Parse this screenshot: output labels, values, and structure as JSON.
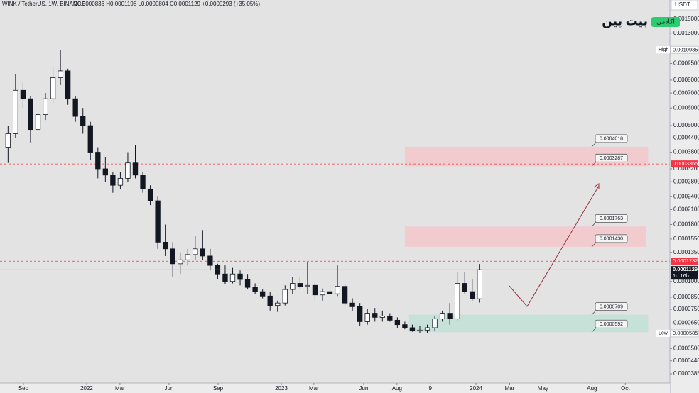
{
  "header": {
    "symbol": "WINK / TetherUS, 1W, BINANCE",
    "ohlc": "O0.0000836 H0.0001198 L0.0000804 C0.0001129 +0.0000293 (+35.05%)"
  },
  "logo": {
    "name": "بیت پین",
    "tag": "آکادمی"
  },
  "chart_data": {
    "type": "candlestick",
    "currency": "USDT",
    "log_scale": true,
    "ylim": [
      3.5e-05,
      0.00183
    ],
    "yticks": [
      {
        "value": 0.0015,
        "label": "0.0015000"
      },
      {
        "value": 0.0013,
        "label": "0.0013000"
      },
      {
        "value": 0.00095,
        "label": "0.0009500"
      },
      {
        "value": 0.0008,
        "label": "0.0008000"
      },
      {
        "value": 0.0007,
        "label": "0.0007000"
      },
      {
        "value": 0.0006,
        "label": "0.0006000"
      },
      {
        "value": 0.0005,
        "label": "0.0005000"
      },
      {
        "value": 0.00044,
        "label": "0.0004400"
      },
      {
        "value": 0.00038,
        "label": "0.0003800"
      },
      {
        "value": 0.00032,
        "label": "0.0003200"
      },
      {
        "value": 0.00028,
        "label": "0.0002800"
      },
      {
        "value": 0.00024,
        "label": "0.0002400"
      },
      {
        "value": 0.00021,
        "label": "0.0002100"
      },
      {
        "value": 0.00018,
        "label": "0.0001800"
      },
      {
        "value": 0.000155,
        "label": "0.0001550"
      },
      {
        "value": 0.000135,
        "label": "0.0001350"
      },
      {
        "value": 0.0001,
        "label": "0.0001000"
      },
      {
        "value": 8.5e-05,
        "label": "0.0000850"
      },
      {
        "value": 7.5e-05,
        "label": "0.0000750"
      },
      {
        "value": 6.5e-05,
        "label": "0.0000650"
      },
      {
        "value": 5e-05,
        "label": "0.0000500"
      },
      {
        "value": 4.4e-05,
        "label": "0.0000440"
      },
      {
        "value": 3.85e-05,
        "label": "0.0000385"
      }
    ],
    "xlim": [
      -23.15,
      155.8
    ],
    "xticks": [
      {
        "value": -16.9,
        "label": "Sep"
      },
      {
        "value": 0,
        "label": "2022"
      },
      {
        "value": 8.9,
        "label": "Mar"
      },
      {
        "value": 22,
        "label": "Jun"
      },
      {
        "value": 35.1,
        "label": "Sep"
      },
      {
        "value": 52,
        "label": "2023"
      },
      {
        "value": 60.7,
        "label": "Mar"
      },
      {
        "value": 74,
        "label": "Jun"
      },
      {
        "value": 82.9,
        "label": "Aug"
      },
      {
        "value": 91.8,
        "label": "9"
      },
      {
        "value": 104,
        "label": "2024"
      },
      {
        "value": 113,
        "label": "Mar"
      },
      {
        "value": 121.9,
        "label": "May"
      },
      {
        "value": 135,
        "label": "Aug"
      },
      {
        "value": 143.9,
        "label": "Oct"
      }
    ],
    "up_color": "#ffffff",
    "down_color": "#131722",
    "x": [
      -21,
      -19,
      -17,
      -15,
      -13,
      -11,
      -9,
      -7,
      -5,
      -3,
      -1,
      1,
      3,
      5,
      7,
      9,
      11,
      13,
      15,
      17,
      19,
      21,
      23,
      25,
      27,
      29,
      31,
      33,
      35,
      37,
      39,
      41,
      43,
      45,
      47,
      49,
      51,
      53,
      55,
      57,
      59,
      61,
      63,
      65,
      67,
      69,
      71,
      73,
      75,
      77,
      79,
      81,
      83,
      85,
      87,
      89,
      91,
      93,
      95,
      97,
      99,
      101,
      103,
      105
    ],
    "open": [
      0.0004,
      0.00046,
      0.00072,
      0.00066,
      0.00048,
      0.00056,
      0.00066,
      0.00082,
      0.00088,
      0.00066,
      0.00055,
      0.0005,
      0.00038,
      0.00032,
      0.0003,
      0.00027,
      0.00029,
      0.00034,
      0.0003,
      0.00026,
      0.00023,
      0.00015,
      0.00014,
      0.00012,
      0.000125,
      0.000132,
      0.00014,
      0.00013,
      0.000118,
      0.000108,
      0.0001,
      0.000108,
      0.000102,
      9.4e-05,
      9e-05,
      8.6e-05,
      7.8e-05,
      8e-05,
      9.2e-05,
      9.8e-05,
      9.5e-05,
      9.6e-05,
      8.7e-05,
      9e-05,
      8.8e-05,
      9.5e-05,
      8e-05,
      7.7e-05,
      6.6e-05,
      7.2e-05,
      6.9e-05,
      7e-05,
      6.7e-05,
      6.4e-05,
      6.2e-05,
      6e-05,
      6.05e-05,
      6.2e-05,
      6.8e-05,
      7.2e-05,
      6.8e-05,
      9.8e-05,
      9e-05,
      8.36e-05
    ],
    "high": [
      0.0005,
      0.00085,
      0.00078,
      0.00068,
      0.0006,
      0.0007,
      0.00092,
      0.0010935,
      0.0009,
      0.00068,
      0.0006,
      0.00052,
      0.0004,
      0.00036,
      0.00031,
      0.00031,
      0.00038,
      0.00041,
      0.00031,
      0.00027,
      0.00024,
      0.00018,
      0.00015,
      0.000135,
      0.00014,
      0.00016,
      0.00017,
      0.00014,
      0.00012,
      0.000118,
      0.000115,
      0.000112,
      0.000108,
      9.8e-05,
      9.2e-05,
      9e-05,
      8.2e-05,
      9.6e-05,
      0.000105,
      0.000104,
      0.000122,
      0.0001,
      9.3e-05,
      9.6e-05,
      0.000118,
      9.7e-05,
      8.4e-05,
      8e-05,
      7.5e-05,
      7.6e-05,
      7.4e-05,
      7.2e-05,
      6.9e-05,
      6.6e-05,
      6.4e-05,
      6.3e-05,
      6.4e-05,
      7e-05,
      7.4e-05,
      8e-05,
      0.00011,
      0.00011,
      0.000102,
      0.0001198
    ],
    "low": [
      0.00034,
      0.00044,
      0.0006,
      0.00042,
      0.00044,
      0.00053,
      0.00063,
      0.00076,
      0.00062,
      0.00052,
      0.00046,
      0.00035,
      0.00029,
      0.00028,
      0.00025,
      0.00026,
      0.00028,
      0.00029,
      0.00025,
      0.00022,
      0.00014,
      0.00013,
      0.000105,
      0.000108,
      0.000118,
      0.000125,
      0.000125,
      0.000112,
      0.000102,
      9.7e-05,
      9.8e-05,
      9.6e-05,
      9.2e-05,
      8.8e-05,
      8.4e-05,
      7.4e-05,
      7.3e-05,
      7.8e-05,
      8.8e-05,
      9.2e-05,
      8.8e-05,
      8.2e-05,
      8.2e-05,
      8.5e-05,
      8.6e-05,
      7.8e-05,
      7.4e-05,
      6.3e-05,
      6.4e-05,
      6.6e-05,
      6.6e-05,
      6.6e-05,
      6.2e-05,
      6.1e-05,
      5.95e-05,
      5.88e-05,
      5.85e-05,
      6e-05,
      6.6e-05,
      6.4e-05,
      6.7e-05,
      8.8e-05,
      8.2e-05,
      8.04e-05
    ],
    "close": [
      0.00046,
      0.00072,
      0.00066,
      0.00048,
      0.00056,
      0.00066,
      0.00082,
      0.00088,
      0.00066,
      0.00055,
      0.0005,
      0.00038,
      0.00032,
      0.0003,
      0.00027,
      0.00029,
      0.00034,
      0.0003,
      0.00026,
      0.00023,
      0.00015,
      0.00014,
      0.00012,
      0.000125,
      0.000132,
      0.00014,
      0.00013,
      0.000118,
      0.000108,
      0.0001,
      0.000108,
      0.000102,
      9.4e-05,
      9e-05,
      8.6e-05,
      7.8e-05,
      8e-05,
      9.2e-05,
      9.8e-05,
      9.5e-05,
      9.6e-05,
      8.7e-05,
      9e-05,
      8.8e-05,
      9.5e-05,
      8e-05,
      7.7e-05,
      6.6e-05,
      7.2e-05,
      6.9e-05,
      7e-05,
      6.7e-05,
      6.4e-05,
      6.2e-05,
      6e-05,
      6.05e-05,
      6.2e-05,
      6.8e-05,
      7.2e-05,
      6.8e-05,
      9.8e-05,
      9e-05,
      8.36e-05,
      0.0001129
    ],
    "zones": [
      {
        "values": [
          0.0004018,
          0.0003287
        ],
        "x": [
          85,
          150
        ],
        "color": "#f4c7cb"
      },
      {
        "values": [
          0.0001763,
          0.000143
        ],
        "value_labels": [
          "0.0001763",
          "0.0001430"
        ],
        "x": [
          85,
          149.5
        ],
        "color": "#f4c7cb"
      },
      {
        "values": [
          7.09e-05,
          5.92e-05
        ],
        "x": [
          86.1,
          150
        ],
        "color": "#bfe0d6"
      }
    ],
    "price_lines": [
      {
        "value": 0.0003365,
        "color": "#f23645",
        "dashed": true
      },
      {
        "value": 0.0001232,
        "color": "#f23645",
        "dashed": true
      }
    ],
    "last_price": {
      "value": 0.0001129,
      "countdown": "1d 16h",
      "color": "#131722"
    },
    "extremes": [
      {
        "name": "High",
        "value": 0.0010935
      },
      {
        "name": "Low",
        "value": 5.85e-05
      }
    ]
  }
}
